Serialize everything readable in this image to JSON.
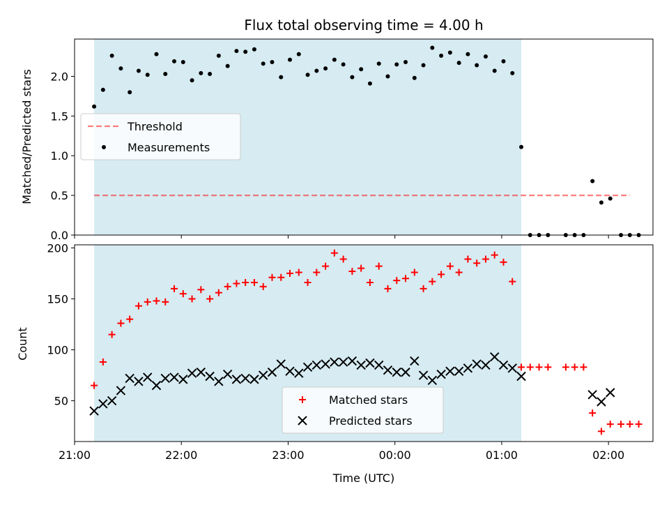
{
  "title": "Flux total observing time = 4.00 h",
  "colors": {
    "shade": "#add8e6",
    "threshold": "#ff0000",
    "measurement": "#000000",
    "matched": "#ff0000",
    "predicted": "#000000"
  },
  "chart_data": [
    {
      "type": "scatter",
      "panel": "top",
      "ylabel": "Matched/Predicted stars",
      "ylim": [
        0,
        2.47
      ],
      "xlim": [
        "21:00",
        "02:25"
      ],
      "yticks": [
        "0.0",
        "0.5",
        "1.0",
        "1.5",
        "2.0"
      ],
      "xticks": [
        "21:00",
        "22:00",
        "23:00",
        "00:00",
        "01:00",
        "02:00"
      ],
      "shaded_span": [
        "21:11",
        "01:11"
      ],
      "threshold": {
        "name": "Threshold",
        "value": 0.5,
        "x_range": [
          "21:11",
          "02:12"
        ]
      },
      "legend": {
        "placement": "center-left",
        "entries": [
          "Threshold",
          "Measurements"
        ]
      },
      "series": [
        {
          "name": "Measurements",
          "points": [
            [
              "21:11",
              1.62
            ],
            [
              "21:16",
              1.83
            ],
            [
              "21:21",
              2.26
            ],
            [
              "21:26",
              2.1
            ],
            [
              "21:31",
              1.8
            ],
            [
              "21:36",
              2.07
            ],
            [
              "21:41",
              2.02
            ],
            [
              "21:46",
              2.28
            ],
            [
              "21:51",
              2.03
            ],
            [
              "21:56",
              2.19
            ],
            [
              "22:01",
              2.18
            ],
            [
              "22:06",
              1.95
            ],
            [
              "22:11",
              2.04
            ],
            [
              "22:16",
              2.03
            ],
            [
              "22:21",
              2.26
            ],
            [
              "22:26",
              2.13
            ],
            [
              "22:31",
              2.32
            ],
            [
              "22:36",
              2.31
            ],
            [
              "22:41",
              2.34
            ],
            [
              "22:46",
              2.16
            ],
            [
              "22:51",
              2.18
            ],
            [
              "22:56",
              1.99
            ],
            [
              "23:01",
              2.21
            ],
            [
              "23:06",
              2.28
            ],
            [
              "23:11",
              2.02
            ],
            [
              "23:16",
              2.07
            ],
            [
              "23:21",
              2.1
            ],
            [
              "23:26",
              2.21
            ],
            [
              "23:31",
              2.15
            ],
            [
              "23:36",
              1.99
            ],
            [
              "23:41",
              2.09
            ],
            [
              "23:46",
              1.91
            ],
            [
              "23:51",
              2.16
            ],
            [
              "23:56",
              2.0
            ],
            [
              "00:01",
              2.15
            ],
            [
              "00:06",
              2.18
            ],
            [
              "00:11",
              1.98
            ],
            [
              "00:16",
              2.14
            ],
            [
              "00:21",
              2.36
            ],
            [
              "00:26",
              2.26
            ],
            [
              "00:31",
              2.3
            ],
            [
              "00:36",
              2.17
            ],
            [
              "00:41",
              2.28
            ],
            [
              "00:46",
              2.14
            ],
            [
              "00:51",
              2.25
            ],
            [
              "00:56",
              2.07
            ],
            [
              "01:01",
              2.19
            ],
            [
              "01:06",
              2.04
            ],
            [
              "01:11",
              1.11
            ],
            [
              "01:16",
              0.0
            ],
            [
              "01:21",
              0.0
            ],
            [
              "01:26",
              0.0
            ],
            [
              "01:36",
              0.0
            ],
            [
              "01:41",
              0.0
            ],
            [
              "01:46",
              0.0
            ],
            [
              "01:51",
              0.68
            ],
            [
              "01:56",
              0.41
            ],
            [
              "02:01",
              0.46
            ],
            [
              "02:07",
              0.0
            ],
            [
              "02:12",
              0.0
            ],
            [
              "02:17",
              0.0
            ]
          ]
        }
      ]
    },
    {
      "type": "scatter",
      "panel": "bottom",
      "xlabel": "Time (UTC)",
      "ylabel": "Count",
      "ylim": [
        10,
        203
      ],
      "xlim": [
        "21:00",
        "02:25"
      ],
      "yticks": [
        "50",
        "100",
        "150",
        "200"
      ],
      "xticks": [
        "21:00",
        "22:00",
        "23:00",
        "00:00",
        "01:00",
        "02:00"
      ],
      "shaded_span": [
        "21:11",
        "01:11"
      ],
      "legend": {
        "placement": "lower-center",
        "entries": [
          "Matched stars",
          "Predicted stars"
        ]
      },
      "series": [
        {
          "name": "Matched stars",
          "points": [
            [
              "21:11",
              65
            ],
            [
              "21:16",
              88
            ],
            [
              "21:21",
              115
            ],
            [
              "21:26",
              126
            ],
            [
              "21:31",
              130
            ],
            [
              "21:36",
              143
            ],
            [
              "21:41",
              147
            ],
            [
              "21:46",
              148
            ],
            [
              "21:51",
              147
            ],
            [
              "21:56",
              160
            ],
            [
              "22:01",
              155
            ],
            [
              "22:06",
              150
            ],
            [
              "22:11",
              159
            ],
            [
              "22:16",
              150
            ],
            [
              "22:21",
              156
            ],
            [
              "22:26",
              162
            ],
            [
              "22:31",
              165
            ],
            [
              "22:36",
              166
            ],
            [
              "22:41",
              166
            ],
            [
              "22:46",
              162
            ],
            [
              "22:51",
              171
            ],
            [
              "22:56",
              171
            ],
            [
              "23:01",
              175
            ],
            [
              "23:06",
              176
            ],
            [
              "23:11",
              166
            ],
            [
              "23:16",
              176
            ],
            [
              "23:21",
              182
            ],
            [
              "23:26",
              195
            ],
            [
              "23:31",
              189
            ],
            [
              "23:36",
              177
            ],
            [
              "23:41",
              180
            ],
            [
              "23:46",
              166
            ],
            [
              "23:51",
              182
            ],
            [
              "23:56",
              160
            ],
            [
              "00:01",
              168
            ],
            [
              "00:06",
              170
            ],
            [
              "00:11",
              176
            ],
            [
              "00:16",
              160
            ],
            [
              "00:21",
              167
            ],
            [
              "00:26",
              174
            ],
            [
              "00:31",
              182
            ],
            [
              "00:36",
              176
            ],
            [
              "00:41",
              189
            ],
            [
              "00:46",
              185
            ],
            [
              "00:51",
              189
            ],
            [
              "00:56",
              193
            ],
            [
              "01:01",
              186
            ],
            [
              "01:06",
              167
            ],
            [
              "01:11",
              83
            ],
            [
              "01:16",
              83
            ],
            [
              "01:21",
              83
            ],
            [
              "01:26",
              83
            ],
            [
              "01:36",
              83
            ],
            [
              "01:41",
              83
            ],
            [
              "01:46",
              83
            ],
            [
              "01:51",
              38
            ],
            [
              "01:56",
              20
            ],
            [
              "02:01",
              27
            ],
            [
              "02:07",
              27
            ],
            [
              "02:12",
              27
            ],
            [
              "02:17",
              27
            ]
          ]
        },
        {
          "name": "Predicted stars",
          "points": [
            [
              "21:11",
              40
            ],
            [
              "21:16",
              47
            ],
            [
              "21:21",
              50
            ],
            [
              "21:26",
              60
            ],
            [
              "21:31",
              72
            ],
            [
              "21:36",
              69
            ],
            [
              "21:41",
              73
            ],
            [
              "21:46",
              65
            ],
            [
              "21:51",
              72
            ],
            [
              "21:56",
              73
            ],
            [
              "22:01",
              71
            ],
            [
              "22:06",
              77
            ],
            [
              "22:11",
              78
            ],
            [
              "22:16",
              74
            ],
            [
              "22:21",
              69
            ],
            [
              "22:26",
              76
            ],
            [
              "22:31",
              71
            ],
            [
              "22:36",
              72
            ],
            [
              "22:41",
              71
            ],
            [
              "22:46",
              75
            ],
            [
              "22:51",
              78
            ],
            [
              "22:56",
              86
            ],
            [
              "23:01",
              79
            ],
            [
              "23:06",
              77
            ],
            [
              "23:11",
              83
            ],
            [
              "23:16",
              85
            ],
            [
              "23:21",
              86
            ],
            [
              "23:26",
              88
            ],
            [
              "23:31",
              88
            ],
            [
              "23:36",
              89
            ],
            [
              "23:41",
              85
            ],
            [
              "23:46",
              87
            ],
            [
              "23:51",
              85
            ],
            [
              "23:56",
              80
            ],
            [
              "00:01",
              78
            ],
            [
              "00:06",
              78
            ],
            [
              "00:11",
              89
            ],
            [
              "00:16",
              75
            ],
            [
              "00:21",
              70
            ],
            [
              "00:26",
              76
            ],
            [
              "00:31",
              79
            ],
            [
              "00:36",
              79
            ],
            [
              "00:41",
              82
            ],
            [
              "00:46",
              86
            ],
            [
              "00:51",
              85
            ],
            [
              "00:56",
              93
            ],
            [
              "01:01",
              85
            ],
            [
              "01:06",
              82
            ],
            [
              "01:11",
              74
            ],
            [
              "01:51",
              56
            ],
            [
              "01:56",
              49
            ],
            [
              "02:01",
              58
            ]
          ]
        }
      ]
    }
  ]
}
